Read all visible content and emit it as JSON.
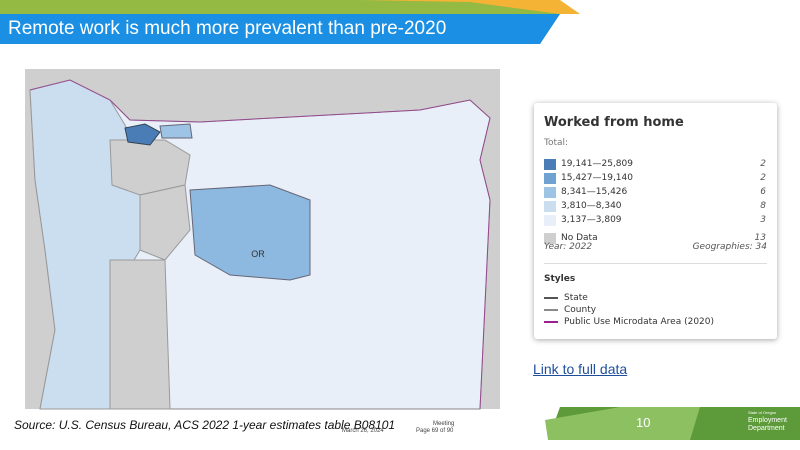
{
  "header": {
    "title": "Remote work is much more prevalent than pre-2020"
  },
  "legend": {
    "title": "Worked from home",
    "total_label": "Total:",
    "rows": [
      {
        "label": "19,141—25,809",
        "count": 2,
        "color": "#4a7db5"
      },
      {
        "label": "15,427—19,140",
        "count": 2,
        "color": "#6fa1d1"
      },
      {
        "label": "8,341—15,426",
        "count": 6,
        "color": "#9dc3e5"
      },
      {
        "label": "3,810—8,340",
        "count": 8,
        "color": "#cadeef"
      },
      {
        "label": "3,137—3,809",
        "count": 3,
        "color": "#e9eff8"
      },
      {
        "label": "No Data",
        "count": 13,
        "color": "#cfcfcf"
      }
    ],
    "year": "Year: 2022",
    "geographies": "Geographies: 34",
    "styles_title": "Styles",
    "styles": [
      {
        "label": "State",
        "color": "#555555"
      },
      {
        "label": "County",
        "color": "#8a8a8a"
      },
      {
        "label": "Public Use Microdata Area (2020)",
        "color": "#9b1f8f"
      }
    ]
  },
  "map": {
    "state_label": "OR"
  },
  "link": "Link to full data",
  "source": "Source: U.S. Census Bureau, ACS 2022 1-year estimates table B08101",
  "footer": {
    "meeting": "Meeting",
    "date": "March 26, 2024",
    "page": "Page 69 of 90",
    "page_number": "10",
    "logo": [
      "State of Oregon",
      "Employment",
      "Department"
    ]
  }
}
